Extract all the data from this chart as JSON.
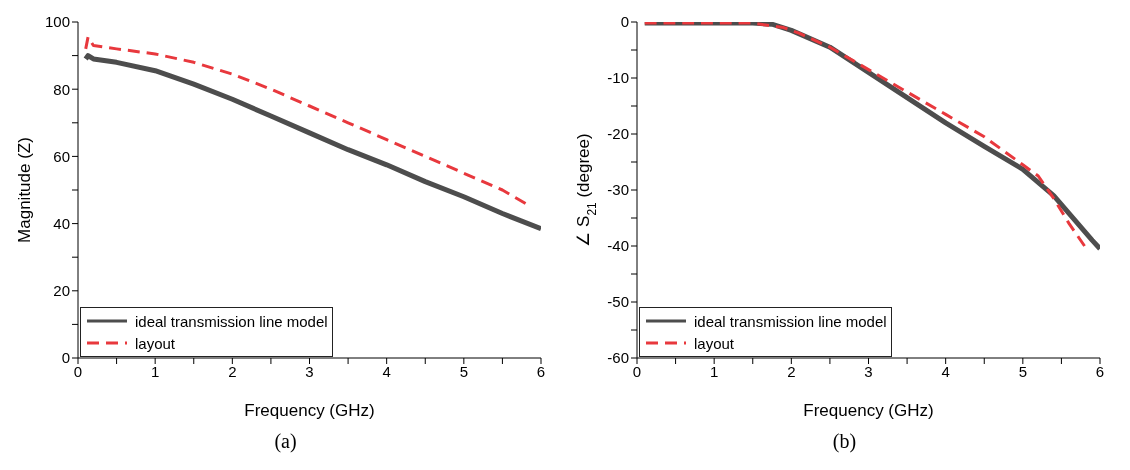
{
  "chart_data": [
    {
      "type": "line",
      "title": "(a)",
      "xlabel": "Frequency (GHz)",
      "ylabel": "Magnitude (Z)",
      "xlim": [
        0,
        6
      ],
      "ylim": [
        0,
        100
      ],
      "xticks": [
        0,
        {
          "value": 0.5,
          "label": null
        },
        1,
        {
          "value": 1.5,
          "label": null
        },
        2,
        {
          "value": 2.5,
          "label": null
        },
        3,
        {
          "value": 3.5,
          "label": null
        },
        4,
        {
          "value": 4.5,
          "label": null
        },
        5,
        {
          "value": 5.5,
          "label": null
        },
        6
      ],
      "yticks": [
        0,
        {
          "value": 10,
          "label": null
        },
        20,
        {
          "value": 30,
          "label": null
        },
        40,
        {
          "value": 50,
          "label": null
        },
        60,
        {
          "value": 70,
          "label": null
        },
        80,
        {
          "value": 90,
          "label": null
        },
        100
      ],
      "grid": false,
      "legend": "bottom left",
      "marker": "none",
      "series": [
        {
          "name": "ideal transmission line model",
          "color": "#4d4d4d",
          "line_style": "solid",
          "x": [
            0.1,
            0.13,
            0.2,
            0.5,
            1,
            1.5,
            2,
            2.5,
            3,
            3.5,
            4,
            4.5,
            5,
            5.5,
            6
          ],
          "values": [
            89,
            90,
            89,
            88,
            85.5,
            81.5,
            77,
            72,
            67,
            62,
            57.5,
            52.5,
            48,
            43,
            38.5
          ]
        },
        {
          "name": "layout",
          "color": "#e8383d",
          "line_style": "dashed",
          "x": [
            0.1,
            0.13,
            0.2,
            0.5,
            1,
            1.5,
            2,
            2.5,
            3,
            3.5,
            4,
            4.5,
            5,
            5.5,
            5.8
          ],
          "values": [
            92,
            95.5,
            93,
            92,
            90.5,
            88,
            84.5,
            80,
            75,
            70,
            65,
            60,
            55,
            50,
            46
          ]
        }
      ]
    },
    {
      "type": "line",
      "title": "(b)",
      "xlabel": "Frequency (GHz)",
      "ylabel": "∠ S$_{21}$ (degree)",
      "xlim": [
        0,
        6
      ],
      "ylim": [
        -60,
        0
      ],
      "xticks": [
        0,
        {
          "value": 0.5,
          "label": null
        },
        1,
        {
          "value": 1.5,
          "label": null
        },
        2,
        {
          "value": 2.5,
          "label": null
        },
        3,
        {
          "value": 3.5,
          "label": null
        },
        4,
        {
          "value": 4.5,
          "label": null
        },
        5,
        {
          "value": 5.5,
          "label": null
        },
        6
      ],
      "yticks": [
        -60,
        {
          "value": -55,
          "label": null
        },
        -50,
        {
          "value": -45,
          "label": null
        },
        -40,
        {
          "value": -35,
          "label": null
        },
        -30,
        {
          "value": -25,
          "label": null
        },
        -20,
        {
          "value": -15,
          "label": null
        },
        -10,
        {
          "value": -5,
          "label": null
        },
        0
      ],
      "grid": false,
      "legend": "bottom left",
      "marker": "none",
      "series": [
        {
          "name": "ideal transmission line model",
          "color": "#4d4d4d",
          "line_style": "solid",
          "x": [
            0.1,
            1,
            1.5,
            1.75,
            2,
            2.5,
            3,
            3.5,
            4,
            4.5,
            5,
            5.4,
            5.9,
            6
          ],
          "values": [
            -0.2,
            -0.2,
            -0.2,
            -0.4,
            -1.5,
            -4.5,
            -9,
            -13.5,
            -18,
            -22.2,
            -26.3,
            -31,
            -39,
            -40.5
          ]
        },
        {
          "name": "layout",
          "color": "#e8383d",
          "line_style": "dashed",
          "x": [
            0.1,
            1.5,
            1.9,
            2.1,
            2.5,
            3,
            3.5,
            4,
            4.5,
            5,
            5.2,
            5.4,
            5.6,
            5.8
          ],
          "values": [
            -0.2,
            -0.2,
            -1,
            -2,
            -4.5,
            -8.5,
            -12.5,
            -16.5,
            -20.5,
            -25.5,
            -27.5,
            -31.5,
            -36,
            -40
          ]
        }
      ]
    }
  ]
}
